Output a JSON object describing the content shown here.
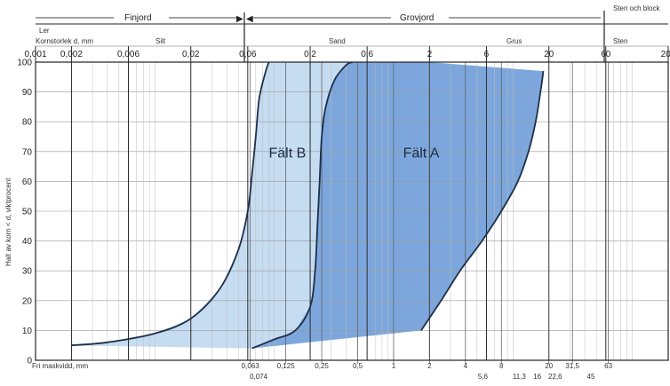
{
  "chart_data": {
    "type": "area",
    "scale": "log",
    "x_range_mm": [
      0.001,
      200
    ],
    "ylim": [
      0,
      100
    ],
    "ylabel": "Halt av korn < d, viktprocent",
    "top_labels": {
      "finjord": "Finjord",
      "grovjord": "Grovjord",
      "sten_block": "Sten och block",
      "ler": "Ler",
      "kornstorlek": "Kornstorlek d, mm",
      "silt": "Silt",
      "sand": "Sand",
      "grus": "Grus",
      "sten": "Sten"
    },
    "top_ticks": [
      {
        "v": 0.001,
        "t": "0,001"
      },
      {
        "v": 0.002,
        "t": "0,002"
      },
      {
        "v": 0.006,
        "t": "0,006"
      },
      {
        "v": 0.02,
        "t": "0,02"
      },
      {
        "v": 0.06,
        "t": "0,06"
      },
      {
        "v": 0.2,
        "t": "0,2"
      },
      {
        "v": 0.6,
        "t": "0,6"
      },
      {
        "v": 2,
        "t": "2"
      },
      {
        "v": 6,
        "t": "6"
      },
      {
        "v": 20,
        "t": "20"
      },
      {
        "v": 60,
        "t": "60"
      },
      {
        "v": 200,
        "t": "200"
      }
    ],
    "y_ticks": [
      0,
      10,
      20,
      30,
      40,
      50,
      60,
      70,
      80,
      90,
      100
    ],
    "bottom_label": "Fri maskvidd, mm",
    "bottom_ticks": [
      {
        "v": 0.063,
        "t": "0,063"
      },
      {
        "v": 0.125,
        "t": "0,125"
      },
      {
        "v": 0.25,
        "t": "0,25"
      },
      {
        "v": 0.5,
        "t": "0,5"
      },
      {
        "v": 1,
        "t": "1"
      },
      {
        "v": 2,
        "t": "2"
      },
      {
        "v": 4,
        "t": "4"
      },
      {
        "v": 8,
        "t": "8"
      },
      {
        "v": 20,
        "t": "20"
      },
      {
        "v": 31.5,
        "t": "31,5"
      },
      {
        "v": 63,
        "t": "63"
      }
    ],
    "bottom_ticks_row2": [
      {
        "v": 0.074,
        "t": "0,074"
      },
      {
        "v": 5.6,
        "t": "5,6"
      },
      {
        "v": 11.3,
        "t": "11,3"
      },
      {
        "v": 16,
        "t": "16"
      },
      {
        "v": 22.6,
        "t": "22,6"
      },
      {
        "v": 45,
        "t": "45"
      }
    ],
    "fields": [
      {
        "name": "Fält A",
        "label_at": {
          "x": 1.2,
          "y": 68
        },
        "fill": "#7da7dc"
      },
      {
        "name": "Fält B",
        "label_at": {
          "x": 0.09,
          "y": 68
        },
        "fill": "#c6dcf1"
      }
    ],
    "curves": [
      {
        "id": "b_left",
        "points": [
          [
            0.002,
            5
          ],
          [
            0.004,
            6
          ],
          [
            0.01,
            9
          ],
          [
            0.02,
            14
          ],
          [
            0.035,
            24
          ],
          [
            0.05,
            37
          ],
          [
            0.06,
            50
          ],
          [
            0.065,
            62
          ],
          [
            0.07,
            75
          ],
          [
            0.075,
            88
          ],
          [
            0.085,
            97
          ],
          [
            0.09,
            100
          ]
        ]
      },
      {
        "id": "b_right",
        "points": [
          [
            0.09,
            100
          ],
          [
            0.12,
            100
          ],
          [
            0.14,
            100
          ],
          [
            0.17,
            100
          ],
          [
            0.22,
            100
          ],
          [
            0.3,
            100
          ],
          [
            0.4,
            100
          ],
          [
            0.5,
            100
          ]
        ]
      },
      {
        "id": "middle",
        "points": [
          [
            0.065,
            4
          ],
          [
            0.1,
            7
          ],
          [
            0.15,
            10
          ],
          [
            0.2,
            18
          ],
          [
            0.22,
            30
          ],
          [
            0.23,
            45
          ],
          [
            0.24,
            60
          ],
          [
            0.25,
            75
          ],
          [
            0.27,
            85
          ],
          [
            0.32,
            94
          ],
          [
            0.4,
            99
          ],
          [
            0.45,
            100
          ]
        ]
      },
      {
        "id": "a_right",
        "points": [
          [
            1.7,
            10
          ],
          [
            2.5,
            20
          ],
          [
            3.6,
            30
          ],
          [
            5.5,
            40
          ],
          [
            8,
            50
          ],
          [
            11,
            60
          ],
          [
            13.5,
            70
          ],
          [
            15.5,
            80
          ],
          [
            17,
            90
          ],
          [
            18,
            97
          ]
        ]
      },
      {
        "id": "top_edge",
        "points": [
          [
            0.09,
            100
          ],
          [
            2,
            100
          ],
          [
            18,
            97
          ]
        ]
      },
      {
        "id": "bottom_edge",
        "points": [
          [
            0.002,
            5
          ],
          [
            0.065,
            4
          ],
          [
            1.7,
            10
          ]
        ]
      }
    ]
  }
}
